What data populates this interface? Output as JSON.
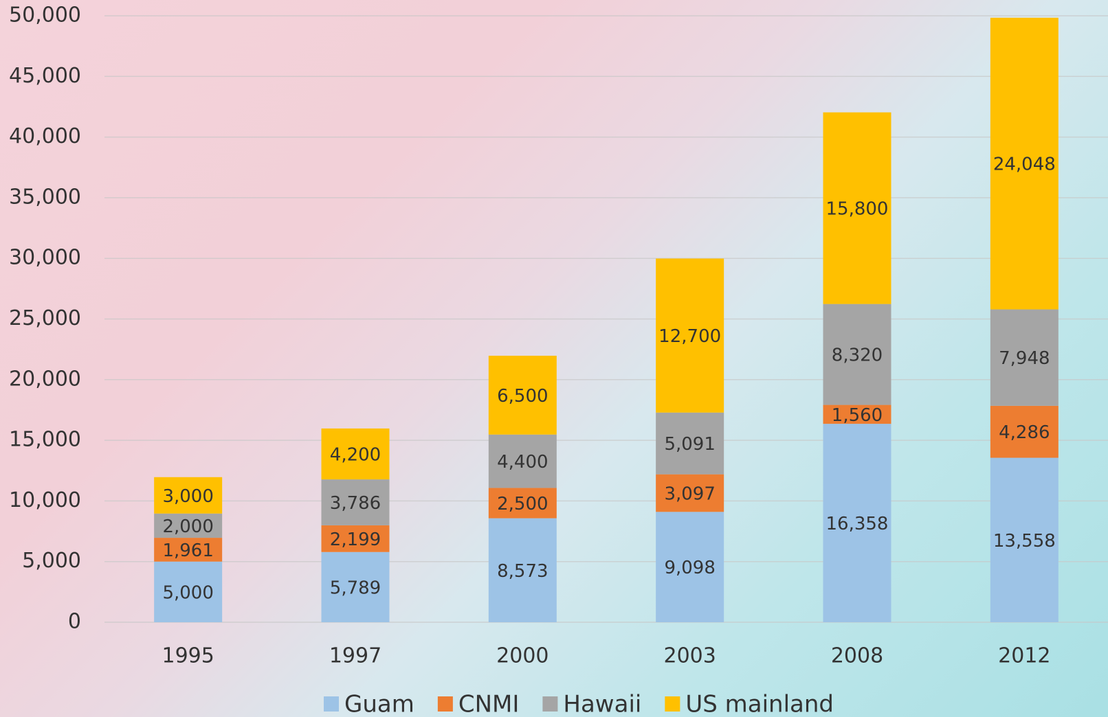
{
  "chart_data": {
    "type": "stacked-bar",
    "categories": [
      "1995",
      "1997",
      "2000",
      "2003",
      "2008",
      "2012"
    ],
    "series": [
      {
        "name": "Guam",
        "color": "#9dc3e6",
        "values": [
          5000,
          5789,
          8573,
          9098,
          16358,
          13558
        ],
        "value_labels": [
          "5,000",
          "5,789",
          "8,573",
          "9,098",
          "16,358",
          "13,558"
        ]
      },
      {
        "name": "CNMI",
        "color": "#ed7d31",
        "values": [
          1961,
          2199,
          2500,
          3097,
          1560,
          4286
        ],
        "value_labels": [
          "1,961",
          "2,199",
          "2,500",
          "3,097",
          "1,560",
          "4,286"
        ]
      },
      {
        "name": "Hawaii",
        "color": "#a5a5a5",
        "values": [
          2000,
          3786,
          4400,
          5091,
          8320,
          7948
        ],
        "value_labels": [
          "2,000",
          "3,786",
          "4,400",
          "5,091",
          "8,320",
          "7,948"
        ]
      },
      {
        "name": "US mainland",
        "color": "#ffc000",
        "values": [
          3000,
          4200,
          6500,
          12700,
          15800,
          24048
        ],
        "value_labels": [
          "3,000",
          "4,200",
          "6,500",
          "12,700",
          "15,800",
          "24,048"
        ]
      }
    ],
    "ylim": [
      0,
      50000
    ],
    "yticks": [
      0,
      {
        "value": 5000,
        "label": "5,000"
      },
      {
        "value": 10000,
        "label": "10,000"
      },
      {
        "value": 15000,
        "label": "15,000"
      },
      {
        "value": 20000,
        "label": "20,000"
      },
      {
        "value": 25000,
        "label": "25,000"
      },
      {
        "value": 30000,
        "label": "30,000"
      },
      {
        "value": 35000,
        "label": "35,000"
      },
      {
        "value": 40000,
        "label": "40,000"
      },
      {
        "value": 45000,
        "label": "45,000"
      },
      {
        "value": 50000,
        "label": "50,000"
      }
    ],
    "grid": true,
    "legend": "bottom"
  }
}
